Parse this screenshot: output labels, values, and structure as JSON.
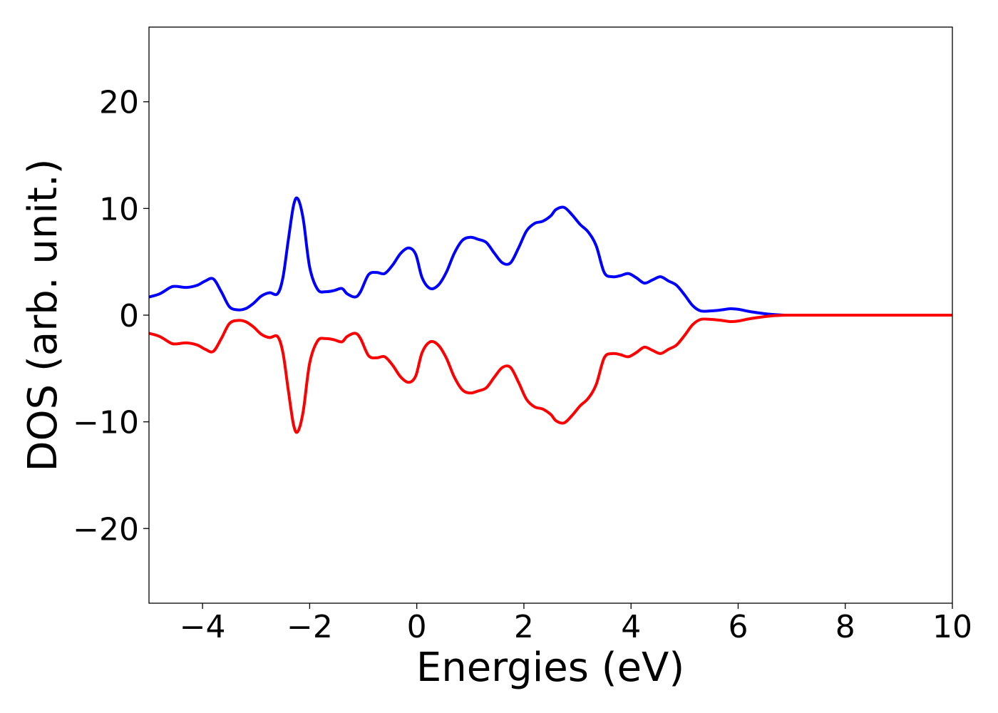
{
  "chart_data": {
    "type": "line",
    "title": "",
    "xlabel": "Energies (eV)",
    "ylabel": "DOS (arb. unit.)",
    "xlim": [
      -5,
      10
    ],
    "ylim": [
      -27,
      27
    ],
    "xticks": [
      -4,
      -2,
      0,
      2,
      4,
      6,
      8,
      10
    ],
    "xtick_labels": [
      "−4",
      "−2",
      "0",
      "2",
      "4",
      "6",
      "8",
      "10"
    ],
    "yticks": [
      -20,
      -10,
      0,
      10,
      20
    ],
    "ytick_labels": [
      "−20",
      "−10",
      "0",
      "10",
      "20"
    ],
    "grid": false,
    "legend": "none",
    "series": [
      {
        "color": "#0000ff",
        "x": [
          -5.0,
          -4.8,
          -4.6,
          -4.5,
          -4.3,
          -4.1,
          -3.95,
          -3.8,
          -3.65,
          -3.5,
          -3.35,
          -3.2,
          -3.05,
          -2.9,
          -2.75,
          -2.6,
          -2.5,
          -2.4,
          -2.3,
          -2.22,
          -2.12,
          -2.0,
          -1.85,
          -1.7,
          -1.55,
          -1.4,
          -1.3,
          -1.15,
          -1.05,
          -0.9,
          -0.75,
          -0.6,
          -0.45,
          -0.3,
          -0.15,
          -0.02,
          0.1,
          0.25,
          0.4,
          0.55,
          0.7,
          0.85,
          1.0,
          1.15,
          1.3,
          1.45,
          1.6,
          1.75,
          1.9,
          2.05,
          2.2,
          2.35,
          2.5,
          2.6,
          2.75,
          2.9,
          3.05,
          3.2,
          3.35,
          3.5,
          3.65,
          3.8,
          3.95,
          4.1,
          4.25,
          4.4,
          4.55,
          4.7,
          4.85,
          5.0,
          5.15,
          5.3,
          5.5,
          5.7,
          5.85,
          6.0,
          6.2,
          6.4,
          6.6,
          6.8,
          7.0,
          8.0,
          9.0,
          10.0
        ],
        "y": [
          1.7,
          2.0,
          2.6,
          2.7,
          2.6,
          2.8,
          3.2,
          3.4,
          2.2,
          0.8,
          0.5,
          0.6,
          1.1,
          1.8,
          2.1,
          2.0,
          3.5,
          7.0,
          10.3,
          10.9,
          9.0,
          4.5,
          2.4,
          2.2,
          2.3,
          2.5,
          2.0,
          1.7,
          2.2,
          3.8,
          4.0,
          3.9,
          4.7,
          5.8,
          6.3,
          5.7,
          3.5,
          2.5,
          2.8,
          4.0,
          5.8,
          7.0,
          7.3,
          7.1,
          6.8,
          5.8,
          4.9,
          4.9,
          6.3,
          7.9,
          8.6,
          8.8,
          9.3,
          9.9,
          10.1,
          9.4,
          8.5,
          7.8,
          6.5,
          4.0,
          3.6,
          3.7,
          3.9,
          3.5,
          3.0,
          3.3,
          3.6,
          3.2,
          2.8,
          1.9,
          0.9,
          0.4,
          0.4,
          0.5,
          0.6,
          0.55,
          0.35,
          0.2,
          0.08,
          0.02,
          0.0,
          0.0,
          0.0,
          0.0
        ]
      },
      {
        "color": "#ff0000",
        "x": [
          -5.0,
          -4.8,
          -4.6,
          -4.5,
          -4.3,
          -4.1,
          -3.95,
          -3.8,
          -3.65,
          -3.5,
          -3.35,
          -3.2,
          -3.05,
          -2.9,
          -2.75,
          -2.6,
          -2.5,
          -2.4,
          -2.3,
          -2.22,
          -2.12,
          -2.0,
          -1.85,
          -1.7,
          -1.55,
          -1.4,
          -1.3,
          -1.15,
          -1.05,
          -0.9,
          -0.75,
          -0.6,
          -0.45,
          -0.3,
          -0.15,
          -0.02,
          0.1,
          0.25,
          0.4,
          0.55,
          0.7,
          0.85,
          1.0,
          1.15,
          1.3,
          1.45,
          1.6,
          1.75,
          1.9,
          2.05,
          2.2,
          2.35,
          2.5,
          2.6,
          2.75,
          2.9,
          3.05,
          3.2,
          3.35,
          3.5,
          3.65,
          3.8,
          3.95,
          4.1,
          4.25,
          4.4,
          4.55,
          4.7,
          4.85,
          5.0,
          5.15,
          5.3,
          5.5,
          5.7,
          5.85,
          6.0,
          6.2,
          6.4,
          6.6,
          6.8,
          7.0,
          8.0,
          9.0,
          10.0
        ],
        "y": [
          -1.7,
          -2.0,
          -2.6,
          -2.7,
          -2.6,
          -2.8,
          -3.2,
          -3.4,
          -2.2,
          -0.8,
          -0.5,
          -0.6,
          -1.1,
          -1.8,
          -2.1,
          -2.0,
          -3.5,
          -7.0,
          -10.3,
          -10.9,
          -9.0,
          -4.5,
          -2.4,
          -2.2,
          -2.3,
          -2.5,
          -2.0,
          -1.7,
          -2.2,
          -3.8,
          -4.0,
          -3.9,
          -4.7,
          -5.8,
          -6.3,
          -5.7,
          -3.5,
          -2.5,
          -2.8,
          -4.0,
          -5.8,
          -7.0,
          -7.3,
          -7.1,
          -6.8,
          -5.8,
          -4.9,
          -4.9,
          -6.3,
          -7.9,
          -8.6,
          -8.8,
          -9.3,
          -9.9,
          -10.1,
          -9.4,
          -8.5,
          -7.8,
          -6.5,
          -4.0,
          -3.6,
          -3.7,
          -3.9,
          -3.5,
          -3.0,
          -3.3,
          -3.6,
          -3.2,
          -2.8,
          -1.9,
          -0.9,
          -0.4,
          -0.4,
          -0.5,
          -0.6,
          -0.55,
          -0.35,
          -0.2,
          -0.08,
          -0.02,
          0.0,
          0.0,
          0.0,
          0.0
        ]
      }
    ]
  }
}
